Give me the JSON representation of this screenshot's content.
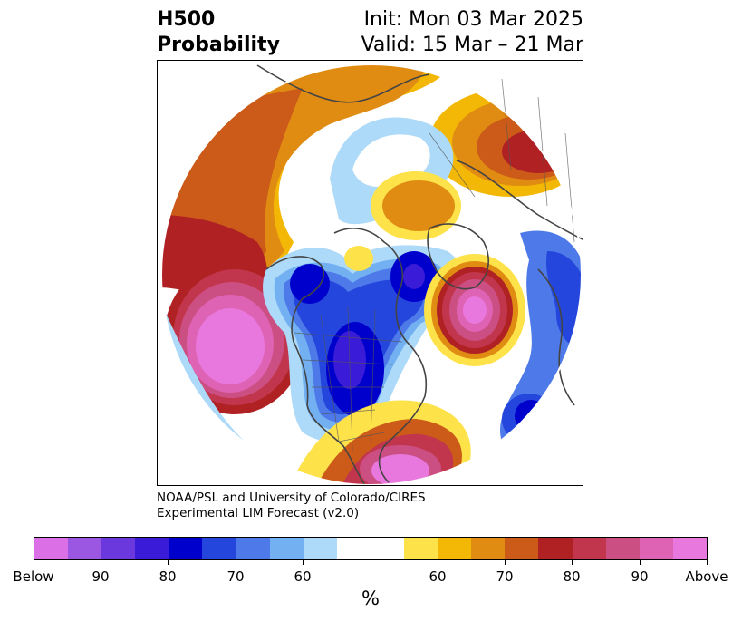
{
  "header": {
    "title_line1": "H500",
    "title_line2": "Probability",
    "init": "Init: Mon 03 Mar 2025",
    "valid": "Valid: 15 Mar – 21 Mar"
  },
  "credit": {
    "line1": "NOAA/PSL and University of Colorado/CIRES",
    "line2": "Experimental LIM Forecast (v2.0)"
  },
  "colorbar": {
    "colors": [
      "#da6fe6",
      "#9c57e2",
      "#6a38dd",
      "#3a1bd7",
      "#0000cc",
      "#2446dc",
      "#4d79e9",
      "#72b0f2",
      "#addaf8",
      "#ffffff",
      "#ffffff",
      "#fde24a",
      "#f3b705",
      "#e08c12",
      "#cc5a18",
      "#b02124",
      "#c2364d",
      "#cc4f83",
      "#df63b4",
      "#e878dd"
    ],
    "labels": [
      "Below",
      "90",
      "80",
      "70",
      "60",
      "60",
      "70",
      "80",
      "90",
      "Above"
    ],
    "unit": "%"
  }
}
